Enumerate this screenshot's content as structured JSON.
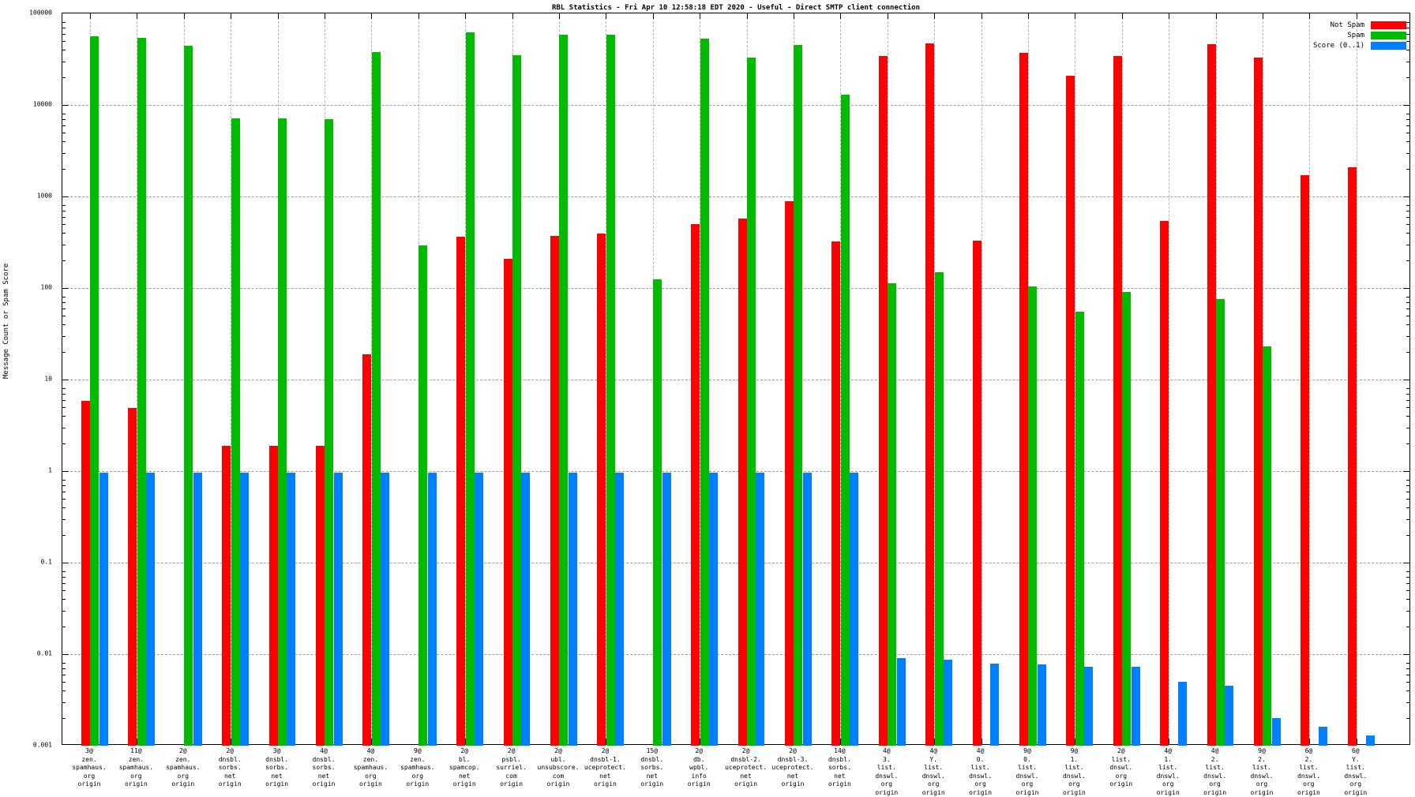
{
  "title": "RBL Statistics - Fri Apr 10 12:58:18 EDT 2020 - Useful - Direct SMTP client connection",
  "ylabel": "Message Count or Spam Score",
  "colors": {
    "not_spam": "#ff0000",
    "spam": "#00bb00",
    "score": "#0080ff"
  },
  "chart_data": {
    "type": "bar",
    "scale": "log",
    "title": "RBL Statistics - Fri Apr 10 12:58:18 EDT 2020 - Useful - Direct SMTP client connection",
    "xlabel": "",
    "ylabel": "Message Count or Spam Score",
    "ylim": [
      0.001,
      100000
    ],
    "yticks": [
      "100000",
      "10000",
      "1000",
      "100",
      "10",
      "1",
      "0.1",
      "0.01",
      "0.001"
    ],
    "grid": true,
    "legend_position": "top-right",
    "categories": [
      [
        "3@",
        "zen.",
        "spamhaus.",
        "org",
        "origin"
      ],
      [
        "11@",
        "zen.",
        "spamhaus.",
        "org",
        "origin"
      ],
      [
        "2@",
        "zen.",
        "spamhaus.",
        "org",
        "origin"
      ],
      [
        "2@",
        "dnsbl.",
        "sorbs.",
        "net",
        "origin"
      ],
      [
        "3@",
        "dnsbl.",
        "sorbs.",
        "net",
        "origin"
      ],
      [
        "4@",
        "dnsbl.",
        "sorbs.",
        "net",
        "origin"
      ],
      [
        "4@",
        "zen.",
        "spamhaus.",
        "org",
        "origin"
      ],
      [
        "9@",
        "zen.",
        "spamhaus.",
        "org",
        "origin"
      ],
      [
        "2@",
        "bl.",
        "spamcop.",
        "net",
        "origin"
      ],
      [
        "2@",
        "psbl.",
        "surriel.",
        "com",
        "origin"
      ],
      [
        "2@",
        "ubl.",
        "unsubscore.",
        "com",
        "origin"
      ],
      [
        "2@",
        "dnsbl-1.",
        "uceprotect.",
        "net",
        "origin"
      ],
      [
        "15@",
        "dnsbl.",
        "sorbs.",
        "net",
        "origin"
      ],
      [
        "2@",
        "db.",
        "wpbl.",
        "info",
        "origin"
      ],
      [
        "2@",
        "dnsbl-2.",
        "uceprotect.",
        "net",
        "origin"
      ],
      [
        "2@",
        "dnsbl-3.",
        "uceprotect.",
        "net",
        "origin"
      ],
      [
        "14@",
        "dnsbl.",
        "sorbs.",
        "net",
        "origin"
      ],
      [
        "4@",
        "3.",
        "list.",
        "dnswl.",
        "org",
        "origin"
      ],
      [
        "4@",
        "Y.",
        "list.",
        "dnswl.",
        "org",
        "origin"
      ],
      [
        "4@",
        "0.",
        "list.",
        "dnswl.",
        "org",
        "origin"
      ],
      [
        "9@",
        "0.",
        "list.",
        "dnswl.",
        "org",
        "origin"
      ],
      [
        "9@",
        "1.",
        "list.",
        "dnswl.",
        "org",
        "origin"
      ],
      [
        "2@",
        "list.",
        "dnswl.",
        "org",
        "origin"
      ],
      [
        "4@",
        "1.",
        "list.",
        "dnswl.",
        "org",
        "origin"
      ],
      [
        "4@",
        "2.",
        "list.",
        "dnswl.",
        "org",
        "origin"
      ],
      [
        "9@",
        "2.",
        "list.",
        "dnswl.",
        "org",
        "origin"
      ],
      [
        "6@",
        "2.",
        "list.",
        "dnswl.",
        "org",
        "origin"
      ],
      [
        "6@",
        "Y.",
        "list.",
        "dnswl.",
        "org",
        "origin"
      ]
    ],
    "series": [
      {
        "name": "Not Spam",
        "color": "#ff0000",
        "values": [
          5.8,
          4.9,
          0,
          1.9,
          1.9,
          1.9,
          19,
          0,
          360,
          210,
          370,
          390,
          0,
          500,
          570,
          890,
          320,
          34000,
          47000,
          330,
          37000,
          21000,
          34000,
          540,
          46000,
          33000,
          1700,
          2100
        ]
      },
      {
        "name": "Spam",
        "color": "#00bb00",
        "values": [
          56000,
          54000,
          44000,
          7100,
          7100,
          7000,
          38000,
          290,
          62000,
          35000,
          59000,
          59000,
          125,
          53000,
          33000,
          45000,
          13000,
          113,
          150,
          0,
          105,
          55,
          90,
          0,
          75,
          23,
          0,
          0
        ]
      },
      {
        "name": "Score (0..1)",
        "color": "#0080ff",
        "values": [
          0.97,
          0.97,
          0.97,
          0.97,
          0.97,
          0.97,
          0.97,
          0.97,
          0.97,
          0.97,
          0.97,
          0.97,
          0.97,
          0.97,
          0.97,
          0.97,
          0.97,
          0.009,
          0.0087,
          0.0079,
          0.0078,
          0.0073,
          0.0073,
          0.005,
          0.0045,
          0.002,
          0.0016,
          0.0013
        ]
      }
    ]
  }
}
